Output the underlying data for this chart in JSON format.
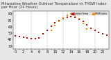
{
  "title": "Milwaukee Weather Outdoor Temperature vs THSW Index per Hour (24 Hours)",
  "background_color": "#e8e8e8",
  "plot_bg_color": "#ffffff",
  "hours": [
    0,
    1,
    2,
    3,
    4,
    5,
    6,
    7,
    8,
    9,
    10,
    11,
    12,
    13,
    14,
    15,
    16,
    17,
    18,
    19,
    20,
    21,
    22,
    23
  ],
  "temp_f": [
    46,
    45,
    44,
    43,
    42,
    41,
    43,
    49,
    55,
    61,
    66,
    70,
    73,
    75,
    76,
    75,
    72,
    68,
    63,
    58,
    54,
    51,
    49,
    47
  ],
  "thsw": [
    null,
    null,
    null,
    null,
    null,
    null,
    null,
    null,
    null,
    55,
    62,
    68,
    74,
    78,
    80,
    78,
    73,
    65,
    57,
    null,
    null,
    null,
    null,
    null
  ],
  "temp_color": "#cc0000",
  "thsw_color": "#ff8800",
  "dot_color_temp": "#1a1a1a",
  "dot_color_thsw": "#ff8800",
  "marker_size": 2.5,
  "grid_color": "#999999",
  "tick_label_fontsize": 3.5,
  "title_fontsize": 3.8,
  "ylim": [
    25,
    85
  ],
  "yticks": [
    30,
    40,
    50,
    60,
    70,
    80
  ],
  "xlim": [
    -0.5,
    23.5
  ],
  "xtick_step": 2,
  "legend_thsw_label": "THSW Index",
  "legend_temp_label": "Outdoor Temp"
}
